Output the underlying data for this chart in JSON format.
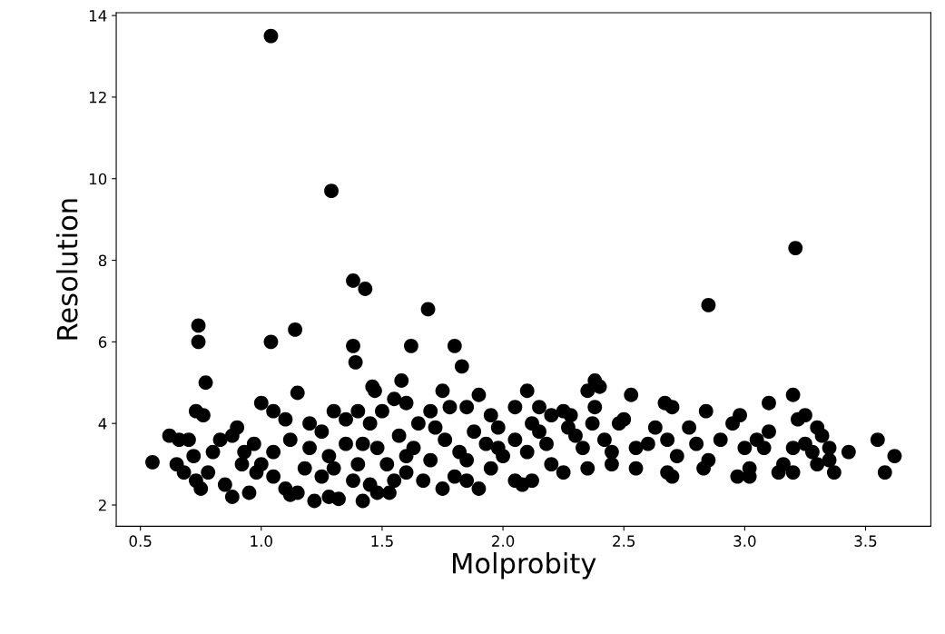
{
  "chart_data": {
    "type": "scatter",
    "xlabel": "Molprobity",
    "ylabel": "Resolution",
    "xlim": [
      0.4,
      3.77
    ],
    "ylim": [
      1.48,
      14.07
    ],
    "xticks": [
      {
        "value": 0.5,
        "label": "0.5"
      },
      {
        "value": 1.0,
        "label": "1.0"
      },
      {
        "value": 1.5,
        "label": "1.5"
      },
      {
        "value": 2.0,
        "label": "2.0"
      },
      {
        "value": 2.5,
        "label": "2.5"
      },
      {
        "value": 3.0,
        "label": "3.0"
      },
      {
        "value": 3.5,
        "label": "3.5"
      }
    ],
    "yticks": [
      2,
      4,
      6,
      8,
      10,
      12,
      14
    ],
    "grid": false,
    "legend": false,
    "marker": "circle",
    "series": [
      {
        "color": "#000000",
        "x": [
          1.04,
          1.29,
          3.21,
          1.38,
          1.43,
          1.69,
          2.85,
          0.74,
          0.74,
          1.04,
          1.14,
          1.38,
          1.39,
          1.62,
          1.8,
          1.83,
          0.77,
          1.15,
          1.46,
          1.47,
          1.58,
          2.38,
          0.73,
          0.76,
          0.55,
          0.62,
          3.55,
          3.62,
          3.58,
          3.43,
          3.37,
          2.53,
          2.5,
          2.55,
          2.55,
          2.6,
          2.63,
          2.67,
          2.7,
          2.68,
          2.68,
          2.7,
          2.72,
          2.77,
          2.8,
          2.84,
          2.85,
          2.83,
          2.9,
          2.95,
          2.98,
          2.97,
          3.0,
          3.02,
          3.02,
          3.05,
          3.08,
          3.1,
          3.1,
          3.14,
          3.16,
          3.2,
          3.22,
          3.25,
          3.2,
          3.2,
          3.25,
          3.28,
          3.3,
          3.32,
          3.3,
          3.35,
          3.35,
          2.05,
          2.1,
          2.12,
          2.15,
          2.2,
          2.25,
          2.28,
          2.35,
          2.4,
          2.38,
          2.37,
          2.33,
          2.3,
          2.2,
          2.25,
          2.35,
          2.12,
          2.05,
          2.08,
          2.0,
          2.05,
          2.1,
          2.15,
          2.18,
          2.27,
          2.42,
          2.45,
          2.48,
          2.45,
          1.5,
          1.55,
          1.6,
          1.65,
          1.7,
          1.75,
          1.78,
          1.85,
          1.9,
          1.95,
          1.98,
          1.93,
          1.88,
          1.82,
          1.76,
          1.7,
          1.63,
          1.57,
          1.52,
          1.55,
          1.6,
          1.67,
          1.75,
          1.8,
          1.85,
          1.9,
          1.95,
          1.53,
          1.6,
          1.72,
          1.85,
          1.98,
          1.0,
          1.05,
          1.1,
          1.2,
          1.25,
          1.3,
          1.35,
          1.4,
          1.45,
          1.42,
          1.35,
          1.28,
          1.2,
          1.12,
          1.05,
          1.0,
          1.05,
          1.1,
          1.12,
          1.15,
          1.22,
          1.28,
          1.32,
          1.42,
          1.45,
          1.48,
          1.38,
          1.25,
          1.18,
          1.3,
          1.4,
          1.48,
          0.65,
          0.68,
          0.7,
          0.72,
          0.73,
          0.75,
          0.78,
          0.8,
          0.83,
          0.85,
          0.88,
          0.9,
          0.92,
          0.95,
          0.97,
          0.98,
          0.66,
          0.88,
          0.93
        ],
        "values": [
          13.5,
          9.7,
          8.3,
          7.5,
          7.3,
          6.8,
          6.9,
          6.4,
          6.0,
          6.0,
          6.3,
          5.9,
          5.5,
          5.9,
          5.9,
          5.4,
          5.0,
          4.75,
          4.9,
          4.8,
          5.05,
          5.05,
          4.3,
          4.2,
          3.05,
          3.7,
          3.6,
          3.2,
          2.8,
          3.3,
          2.8,
          4.7,
          4.1,
          3.4,
          2.9,
          3.5,
          3.9,
          4.5,
          4.4,
          3.6,
          2.8,
          2.7,
          3.2,
          3.9,
          3.5,
          4.3,
          3.1,
          2.9,
          3.6,
          4.0,
          4.2,
          2.7,
          3.4,
          2.9,
          2.7,
          3.6,
          3.4,
          4.5,
          3.8,
          2.8,
          3.0,
          4.7,
          4.1,
          4.2,
          3.4,
          2.8,
          3.5,
          3.3,
          3.9,
          3.7,
          3.0,
          3.4,
          3.1,
          4.4,
          4.8,
          4.0,
          4.4,
          4.2,
          4.3,
          4.2,
          4.8,
          4.9,
          4.4,
          4.0,
          3.4,
          3.7,
          3.0,
          2.8,
          2.9,
          2.6,
          2.6,
          2.5,
          3.2,
          3.6,
          3.3,
          3.8,
          3.5,
          3.9,
          3.6,
          3.3,
          4.0,
          3.0,
          4.3,
          4.6,
          4.5,
          4.0,
          4.3,
          4.8,
          4.4,
          4.4,
          4.7,
          4.2,
          3.9,
          3.5,
          3.8,
          3.3,
          3.6,
          3.1,
          3.4,
          3.7,
          3.0,
          2.6,
          2.8,
          2.6,
          2.4,
          2.7,
          2.6,
          2.4,
          2.9,
          2.3,
          3.2,
          3.9,
          3.1,
          3.4,
          4.5,
          4.3,
          4.1,
          4.0,
          3.8,
          4.3,
          4.1,
          4.3,
          4.0,
          3.5,
          3.5,
          3.2,
          3.4,
          3.6,
          3.3,
          3.0,
          2.7,
          2.4,
          2.25,
          2.3,
          2.1,
          2.2,
          2.15,
          2.1,
          2.5,
          2.3,
          2.6,
          2.7,
          2.9,
          2.9,
          3.0,
          3.4,
          3.0,
          2.8,
          3.6,
          3.2,
          2.6,
          2.4,
          2.8,
          3.3,
          3.6,
          2.5,
          2.2,
          3.9,
          3.0,
          2.3,
          3.5,
          2.8,
          3.6,
          3.7,
          3.3
        ]
      }
    ]
  }
}
